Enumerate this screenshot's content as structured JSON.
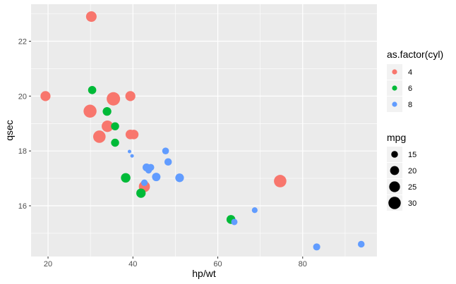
{
  "chart_data": {
    "type": "scatter",
    "title": "",
    "xlabel": "hp/wt",
    "ylabel": "qsec",
    "xlim": [
      16.0,
      97.5
    ],
    "ylim": [
      14.15,
      23.35
    ],
    "x_ticks": [
      20,
      40,
      60,
      80
    ],
    "y_ticks": [
      16,
      18,
      20,
      22
    ],
    "x_tick_labels": [
      "20",
      "40",
      "60",
      "80"
    ],
    "y_tick_labels": [
      "16",
      "18",
      "20",
      "22"
    ],
    "grid": true,
    "panel_background": "#ebebeb",
    "color_legend": {
      "title": "as.factor(cyl)",
      "placement": "right",
      "entries": [
        {
          "label": "4",
          "color": "#f8766d"
        },
        {
          "label": "6",
          "color": "#00ba38"
        },
        {
          "label": "8",
          "color": "#619cff"
        }
      ]
    },
    "size_legend": {
      "title": "mpg",
      "placement": "right",
      "entries": [
        {
          "label": "15",
          "value": 15
        },
        {
          "label": "20",
          "value": 20
        },
        {
          "label": "25",
          "value": 25
        },
        {
          "label": "30",
          "value": 30
        }
      ]
    },
    "size_range": [
      10.4,
      33.9
    ],
    "series": [
      {
        "name": "4",
        "color": "#f8766d",
        "points": [
          {
            "x": 30.2,
            "y": 22.9,
            "mpg": 24.4
          },
          {
            "x": 19.4,
            "y": 20.0,
            "mpg": 22.8
          },
          {
            "x": 39.4,
            "y": 20.0,
            "mpg": 22.8
          },
          {
            "x": 35.4,
            "y": 19.9,
            "mpg": 33.9
          },
          {
            "x": 29.9,
            "y": 19.45,
            "mpg": 32.4
          },
          {
            "x": 34.0,
            "y": 18.9,
            "mpg": 27.3
          },
          {
            "x": 39.4,
            "y": 18.6,
            "mpg": 21.5
          },
          {
            "x": 40.2,
            "y": 18.6,
            "mpg": 21.4
          },
          {
            "x": 32.1,
            "y": 18.52,
            "mpg": 30.4
          },
          {
            "x": 42.7,
            "y": 16.7,
            "mpg": 26.0
          },
          {
            "x": 74.7,
            "y": 16.9,
            "mpg": 30.4
          }
        ]
      },
      {
        "name": "6",
        "color": "#00ba38",
        "points": [
          {
            "x": 30.4,
            "y": 20.22,
            "mpg": 18.1
          },
          {
            "x": 33.9,
            "y": 19.44,
            "mpg": 19.2
          },
          {
            "x": 35.8,
            "y": 18.9,
            "mpg": 17.8
          },
          {
            "x": 35.8,
            "y": 18.3,
            "mpg": 17.8
          },
          {
            "x": 38.3,
            "y": 17.02,
            "mpg": 21.4
          },
          {
            "x": 41.9,
            "y": 16.46,
            "mpg": 21.0
          },
          {
            "x": 63.1,
            "y": 15.5,
            "mpg": 19.7
          }
        ]
      },
      {
        "name": "8",
        "color": "#619cff",
        "points": [
          {
            "x": 39.2,
            "y": 17.98,
            "mpg": 10.4
          },
          {
            "x": 39.8,
            "y": 17.82,
            "mpg": 10.4
          },
          {
            "x": 47.7,
            "y": 18.0,
            "mpg": 15.2
          },
          {
            "x": 48.3,
            "y": 17.6,
            "mpg": 16.4
          },
          {
            "x": 43.2,
            "y": 17.4,
            "mpg": 17.3
          },
          {
            "x": 44.2,
            "y": 17.4,
            "mpg": 15.5
          },
          {
            "x": 43.7,
            "y": 17.3,
            "mpg": 15.0
          },
          {
            "x": 45.5,
            "y": 17.05,
            "mpg": 18.7
          },
          {
            "x": 51.0,
            "y": 17.02,
            "mpg": 19.2
          },
          {
            "x": 42.7,
            "y": 16.84,
            "mpg": 14.7
          },
          {
            "x": 63.9,
            "y": 15.41,
            "mpg": 14.3
          },
          {
            "x": 68.7,
            "y": 15.84,
            "mpg": 13.3
          },
          {
            "x": 83.3,
            "y": 14.5,
            "mpg": 15.8
          },
          {
            "x": 93.8,
            "y": 14.6,
            "mpg": 15.0
          }
        ]
      }
    ]
  }
}
